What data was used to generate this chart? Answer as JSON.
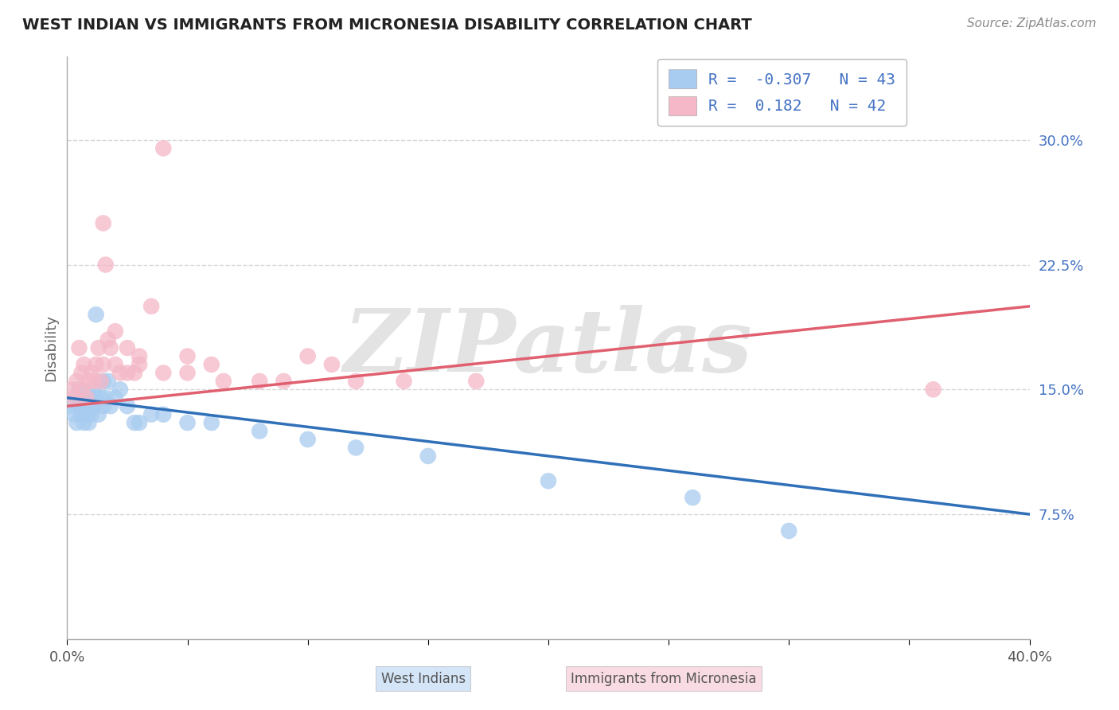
{
  "title": "WEST INDIAN VS IMMIGRANTS FROM MICRONESIA DISABILITY CORRELATION CHART",
  "source": "Source: ZipAtlas.com",
  "ylabel": "Disability",
  "xlim": [
    0.0,
    0.4
  ],
  "ylim": [
    0.0,
    0.35
  ],
  "ytick_vals": [
    0.075,
    0.15,
    0.225,
    0.3
  ],
  "ytick_labels_right": [
    "7.5%",
    "15.0%",
    "22.5%",
    "30.0%"
  ],
  "blue_R": -0.307,
  "blue_N": 43,
  "pink_R": 0.182,
  "pink_N": 42,
  "blue_color": "#A8CCF0",
  "pink_color": "#F4B8C8",
  "blue_line_color": "#3070B8",
  "pink_line_color": "#E06070",
  "grid_color": "#CCCCCC",
  "background_color": "#FFFFFF",
  "watermark": "ZIPatlas",
  "blue_x": [
    0.002,
    0.003,
    0.004,
    0.004,
    0.005,
    0.005,
    0.006,
    0.006,
    0.007,
    0.007,
    0.008,
    0.008,
    0.009,
    0.009,
    0.01,
    0.01,
    0.011,
    0.011,
    0.012,
    0.012,
    0.013,
    0.014,
    0.015,
    0.015,
    0.016,
    0.017,
    0.018,
    0.02,
    0.022,
    0.025,
    0.028,
    0.03,
    0.035,
    0.04,
    0.05,
    0.06,
    0.08,
    0.1,
    0.12,
    0.15,
    0.2,
    0.26,
    0.3
  ],
  "blue_y": [
    0.14,
    0.135,
    0.145,
    0.13,
    0.15,
    0.14,
    0.145,
    0.135,
    0.14,
    0.13,
    0.145,
    0.135,
    0.14,
    0.13,
    0.145,
    0.135,
    0.15,
    0.14,
    0.145,
    0.195,
    0.135,
    0.145,
    0.155,
    0.14,
    0.145,
    0.155,
    0.14,
    0.145,
    0.15,
    0.14,
    0.13,
    0.13,
    0.135,
    0.135,
    0.13,
    0.13,
    0.125,
    0.12,
    0.115,
    0.11,
    0.095,
    0.085,
    0.065
  ],
  "pink_x": [
    0.002,
    0.003,
    0.004,
    0.005,
    0.006,
    0.006,
    0.007,
    0.008,
    0.009,
    0.01,
    0.011,
    0.012,
    0.013,
    0.014,
    0.015,
    0.016,
    0.017,
    0.018,
    0.02,
    0.022,
    0.025,
    0.028,
    0.03,
    0.035,
    0.04,
    0.05,
    0.06,
    0.08,
    0.1,
    0.12,
    0.015,
    0.02,
    0.025,
    0.03,
    0.04,
    0.05,
    0.065,
    0.09,
    0.11,
    0.14,
    0.17,
    0.36
  ],
  "pink_y": [
    0.15,
    0.145,
    0.155,
    0.175,
    0.16,
    0.15,
    0.165,
    0.145,
    0.155,
    0.16,
    0.155,
    0.165,
    0.175,
    0.155,
    0.165,
    0.225,
    0.18,
    0.175,
    0.165,
    0.16,
    0.175,
    0.16,
    0.17,
    0.2,
    0.295,
    0.16,
    0.165,
    0.155,
    0.17,
    0.155,
    0.25,
    0.185,
    0.16,
    0.165,
    0.16,
    0.17,
    0.155,
    0.155,
    0.165,
    0.155,
    0.155,
    0.15
  ]
}
